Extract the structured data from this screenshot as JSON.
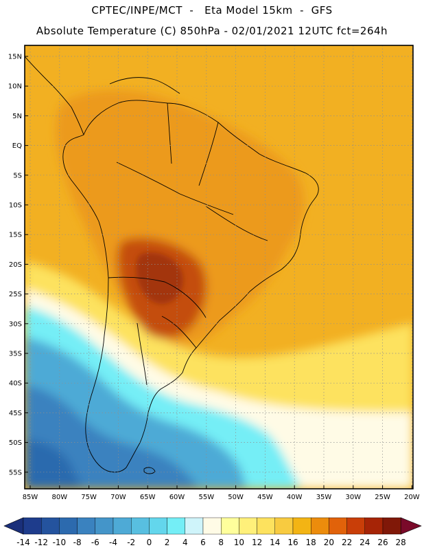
{
  "header": {
    "line1": "CPTEC/INPE/MCT  -   Eta Model 15km  -  GFS",
    "line2": "Absolute Temperature (C) 850hPa - 02/01/2021 12UTC fct=264h"
  },
  "axes": {
    "lat_ticks": [
      "15N",
      "10N",
      "5N",
      "EQ",
      "5S",
      "10S",
      "15S",
      "20S",
      "25S",
      "30S",
      "35S",
      "40S",
      "45S",
      "50S",
      "55S"
    ],
    "lon_ticks": [
      "85W",
      "80W",
      "75W",
      "70W",
      "65W",
      "60W",
      "55W",
      "50W",
      "45W",
      "40W",
      "35W",
      "30W",
      "25W",
      "20W"
    ]
  },
  "colorbar": {
    "labels": [
      "-14",
      "-12",
      "-10",
      "-8",
      "-6",
      "-4",
      "-2",
      "0",
      "2",
      "4",
      "6",
      "8",
      "10",
      "12",
      "14",
      "16",
      "18",
      "20",
      "22",
      "24",
      "26",
      "28"
    ],
    "colors": [
      "#1e3c8c",
      "#24539e",
      "#2c6aae",
      "#3a82bf",
      "#4495c9",
      "#4eaad6",
      "#58bfe0",
      "#63d6ec",
      "#74eef6",
      "#cff4fa",
      "#fffbe6",
      "#ffff9c",
      "#fff07a",
      "#fde25e",
      "#f8cb40",
      "#f3b414",
      "#ec8c0c",
      "#e1620a",
      "#c93e08",
      "#a62406",
      "#801808"
    ],
    "min_color": "#1a2f7a",
    "max_color": "#7a0a2a"
  },
  "map": {
    "colors": {
      "ocean_north": "#f2b022",
      "land_warm": "#ec9a1a",
      "hot_core": "#c44d10",
      "hot_center": "#a33610",
      "yellow_band": "#fde25e",
      "cream": "#fffbe6",
      "cyan_light": "#74eef6",
      "cyan": "#4eaad6",
      "blue": "#3a82bf",
      "deep_blue": "#2c6aae"
    }
  }
}
